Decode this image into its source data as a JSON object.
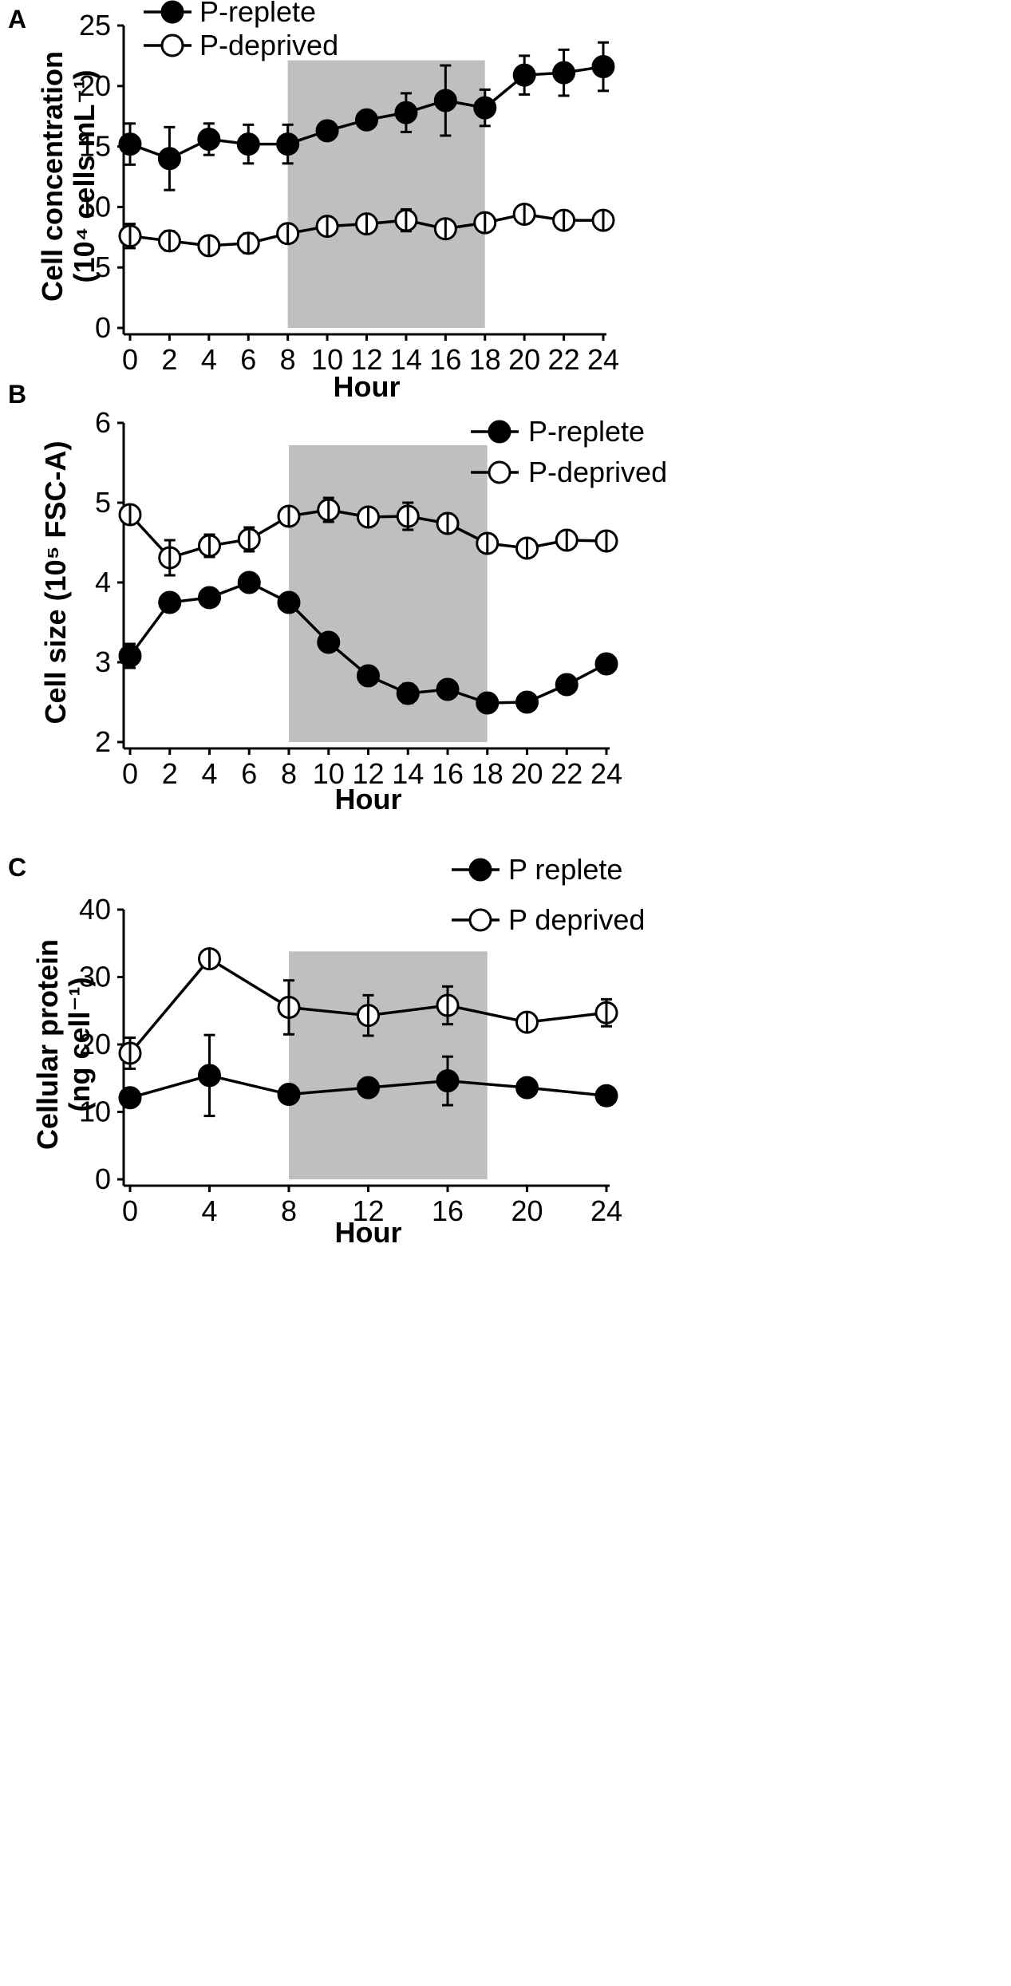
{
  "chart_data": [
    {
      "panel": "A",
      "type": "line",
      "xlabel": "Hour",
      "ylabel_line1": "Cell concentration",
      "ylabel_line2": "(10⁴ cells mL⁻¹)",
      "xlim": [
        0,
        24
      ],
      "ylim": [
        0,
        25
      ],
      "x_ticks": [
        0,
        2,
        4,
        6,
        8,
        10,
        12,
        14,
        16,
        18,
        20,
        22,
        24
      ],
      "y_ticks": [
        0,
        5,
        10,
        15,
        20,
        25
      ],
      "shaded_x": [
        8,
        18
      ],
      "legend": [
        "P-replete",
        "P-deprived"
      ],
      "legend_position": "top-left",
      "series": [
        {
          "name": "P-replete",
          "marker": "filled",
          "x": [
            0,
            2,
            4,
            6,
            8,
            10,
            12,
            14,
            16,
            18,
            20,
            22,
            24
          ],
          "values": [
            15.2,
            14.0,
            15.6,
            15.2,
            15.2,
            16.3,
            17.2,
            17.8,
            18.8,
            18.2,
            20.9,
            21.1,
            21.6
          ],
          "errors": [
            1.7,
            2.6,
            1.3,
            1.6,
            1.6,
            0.4,
            0.5,
            1.6,
            2.9,
            1.5,
            1.6,
            1.9,
            2.0
          ]
        },
        {
          "name": "P-deprived",
          "marker": "open",
          "x": [
            0,
            2,
            4,
            6,
            8,
            10,
            12,
            14,
            16,
            18,
            20,
            22,
            24
          ],
          "values": [
            7.6,
            7.2,
            6.8,
            7.0,
            7.8,
            8.4,
            8.6,
            8.9,
            8.2,
            8.7,
            9.4,
            8.9,
            8.9
          ],
          "errors": [
            1.0,
            0.8,
            0.5,
            0.8,
            0.7,
            0.6,
            0.6,
            0.9,
            0.6,
            0.5,
            0.7,
            0.7,
            0.5
          ]
        }
      ]
    },
    {
      "panel": "B",
      "type": "line",
      "xlabel": "Hour",
      "ylabel": "Cell size (10⁵ FSC-A)",
      "xlim": [
        0,
        24
      ],
      "ylim": [
        2,
        6
      ],
      "x_ticks": [
        0,
        2,
        4,
        6,
        8,
        10,
        12,
        14,
        16,
        18,
        20,
        22,
        24
      ],
      "y_ticks": [
        2,
        3,
        4,
        5,
        6
      ],
      "shaded_x": [
        8,
        18
      ],
      "legend": [
        "P-replete",
        "P-deprived"
      ],
      "legend_position": "top-right",
      "series": [
        {
          "name": "P-replete",
          "marker": "filled",
          "x": [
            0,
            2,
            4,
            6,
            8,
            10,
            12,
            14,
            16,
            18,
            20,
            22,
            24
          ],
          "values": [
            3.08,
            3.75,
            3.81,
            4.0,
            3.75,
            3.25,
            2.83,
            2.61,
            2.66,
            2.49,
            2.5,
            2.72,
            2.98
          ],
          "errors": [
            0.15,
            0.07,
            0.05,
            0.05,
            0.05,
            0.05,
            0.05,
            0.12,
            0.05,
            0.05,
            0.05,
            0.05,
            0.05
          ]
        },
        {
          "name": "P-deprived",
          "marker": "open",
          "x": [
            0,
            2,
            4,
            6,
            8,
            10,
            12,
            14,
            16,
            18,
            20,
            22,
            24
          ],
          "values": [
            4.85,
            4.31,
            4.46,
            4.54,
            4.83,
            4.91,
            4.82,
            4.83,
            4.74,
            4.49,
            4.43,
            4.53,
            4.52
          ],
          "errors": [
            0.05,
            0.22,
            0.14,
            0.15,
            0.05,
            0.15,
            0.07,
            0.17,
            0.05,
            0.05,
            0.05,
            0.05,
            0.05
          ]
        }
      ]
    },
    {
      "panel": "C",
      "type": "line",
      "xlabel": "Hour",
      "ylabel_line1": "Cellular protein",
      "ylabel_line2": "(ng cell⁻¹)",
      "xlim": [
        0,
        24
      ],
      "ylim": [
        0,
        40
      ],
      "x_ticks": [
        0,
        4,
        8,
        12,
        16,
        20,
        24
      ],
      "y_ticks": [
        0,
        10,
        20,
        30,
        40
      ],
      "shaded_x": [
        8,
        18
      ],
      "legend": [
        "P replete",
        "P deprived"
      ],
      "legend_position": "top-right",
      "series": [
        {
          "name": "P replete",
          "marker": "filled",
          "x": [
            0,
            4,
            8,
            12,
            16,
            20,
            24
          ],
          "values": [
            12.1,
            15.4,
            12.6,
            13.6,
            14.6,
            13.6,
            12.4
          ],
          "errors": [
            1.0,
            6.0,
            0.6,
            0.6,
            3.6,
            0.6,
            0.6
          ]
        },
        {
          "name": "P deprived",
          "marker": "open",
          "x": [
            0,
            4,
            8,
            12,
            16,
            20,
            24
          ],
          "values": [
            18.7,
            32.7,
            25.5,
            24.3,
            25.8,
            23.3,
            24.7
          ],
          "errors": [
            2.3,
            0.8,
            4.0,
            3.0,
            2.8,
            0.8,
            2.0
          ]
        }
      ]
    }
  ]
}
